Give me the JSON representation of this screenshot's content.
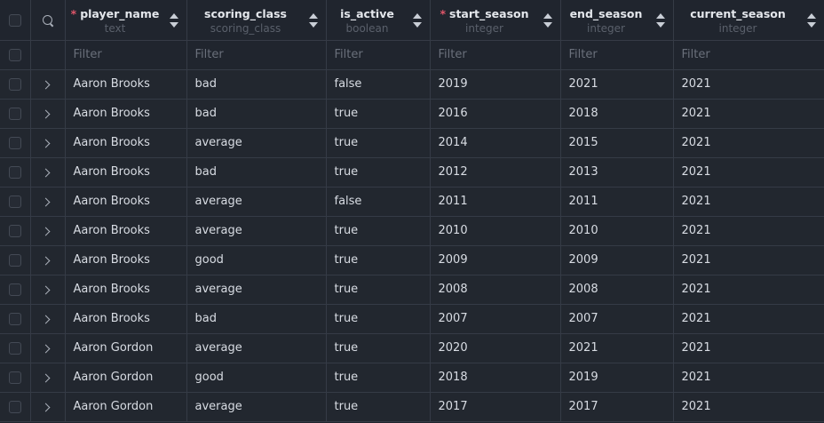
{
  "columns": [
    {
      "name": "player_name",
      "type": "text",
      "required": true
    },
    {
      "name": "scoring_class",
      "type": "scoring_class",
      "required": false
    },
    {
      "name": "is_active",
      "type": "boolean",
      "required": false
    },
    {
      "name": "start_season",
      "type": "integer",
      "required": true
    },
    {
      "name": "end_season",
      "type": "integer",
      "required": false
    },
    {
      "name": "current_season",
      "type": "integer",
      "required": false
    }
  ],
  "filter_placeholder": "Filter",
  "required_marker": "*",
  "rows": [
    [
      "Aaron Brooks",
      "bad",
      "false",
      "2019",
      "2021",
      "2021"
    ],
    [
      "Aaron Brooks",
      "bad",
      "true",
      "2016",
      "2018",
      "2021"
    ],
    [
      "Aaron Brooks",
      "average",
      "true",
      "2014",
      "2015",
      "2021"
    ],
    [
      "Aaron Brooks",
      "bad",
      "true",
      "2012",
      "2013",
      "2021"
    ],
    [
      "Aaron Brooks",
      "average",
      "false",
      "2011",
      "2011",
      "2021"
    ],
    [
      "Aaron Brooks",
      "average",
      "true",
      "2010",
      "2010",
      "2021"
    ],
    [
      "Aaron Brooks",
      "good",
      "true",
      "2009",
      "2009",
      "2021"
    ],
    [
      "Aaron Brooks",
      "average",
      "true",
      "2008",
      "2008",
      "2021"
    ],
    [
      "Aaron Brooks",
      "bad",
      "true",
      "2007",
      "2007",
      "2021"
    ],
    [
      "Aaron Gordon",
      "average",
      "true",
      "2020",
      "2021",
      "2021"
    ],
    [
      "Aaron Gordon",
      "good",
      "true",
      "2018",
      "2019",
      "2021"
    ],
    [
      "Aaron Gordon",
      "average",
      "true",
      "2017",
      "2017",
      "2021"
    ]
  ]
}
